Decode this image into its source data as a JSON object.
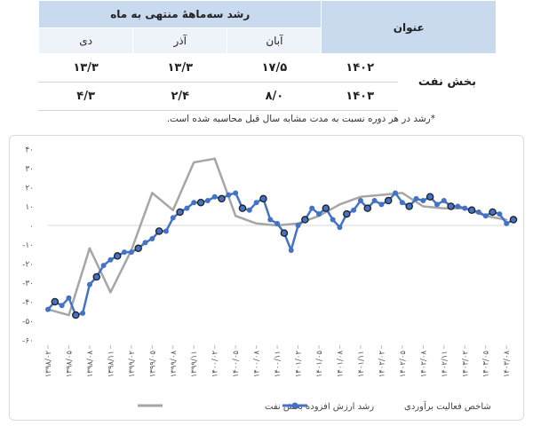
{
  "table": {
    "header_title": "عنوان",
    "header_group": "رشد سه‌ماهۀ منتهی به ماه",
    "months": [
      "آبان",
      "آذر",
      "دی"
    ],
    "sector": "بخش نفت",
    "rows": [
      {
        "year": "۱۴۰۲",
        "values": [
          "۱۷/۵",
          "۱۳/۳",
          "۱۳/۳"
        ]
      },
      {
        "year": "۱۴۰۳",
        "values": [
          "۸/۰",
          "۲/۴",
          "۴/۳"
        ]
      }
    ]
  },
  "note": "*رشد در هر دوره نسبت به مدت مشابه سال قبل محاسبه شده است.",
  "chart_data": {
    "type": "line",
    "ylim": [
      -60,
      40
    ],
    "yticks": [
      40,
      30,
      20,
      10,
      0,
      -10,
      -20,
      -30,
      -40,
      -50,
      -60
    ],
    "ytick_labels": [
      "۴۰",
      "۳۰",
      "۲۰",
      "۱۰",
      "۰",
      "-۱۰",
      "-۲۰",
      "-۳۰",
      "-۴۰",
      "-۵۰",
      "-۶۰"
    ],
    "xtick_labels": [
      "۱۳۹۸/۰۲",
      "۱۳۹۸/۰۵",
      "۱۳۹۸/۰۸",
      "۱۳۹۸/۱۱",
      "۱۳۹۹/۰۲",
      "۱۳۹۹/۰۵",
      "۱۳۹۹/۰۸",
      "۱۳۹۹/۱۱",
      "۱۴۰۰/۰۲",
      "۱۴۰۰/۰۵",
      "۱۴۰۰/۰۸",
      "۱۴۰۰/۱۱",
      "۱۴۰۱/۰۲",
      "۱۴۰۱/۰۵",
      "۱۴۰۱/۰۸",
      "۱۴۰۱/۱۱",
      "۱۴۰۲/۰۲",
      "۱۴۰۲/۰۵",
      "۱۴۰۲/۰۸",
      "۱۴۰۲/۱۱",
      "۱۴۰۳/۰۲",
      "۱۴۰۳/۰۵",
      "۱۴۰۳/۰۸"
    ],
    "series": [
      {
        "name": "رشد ارزش افزوده بخش نفت",
        "color": "#a6a6a6",
        "x": [
          0,
          3,
          6,
          9,
          12,
          15,
          18,
          21,
          24,
          27,
          30,
          33,
          36,
          39,
          42,
          45,
          48,
          51,
          54,
          57,
          60,
          63,
          66
        ],
        "values": [
          -44,
          -47,
          -12,
          -35,
          -13,
          17,
          8,
          33,
          35,
          5,
          1,
          0,
          1,
          5,
          11,
          15,
          16,
          17,
          10,
          9,
          9,
          5,
          3
        ]
      },
      {
        "name": "شاخص فعالیت برآوردی",
        "color": "#4472c4",
        "x": [
          0,
          1,
          2,
          3,
          4,
          5,
          6,
          7,
          8,
          9,
          10,
          11,
          12,
          13,
          14,
          15,
          16,
          17,
          18,
          19,
          20,
          21,
          22,
          23,
          24,
          25,
          26,
          27,
          28,
          29,
          30,
          31,
          32,
          33,
          34,
          35,
          36,
          37,
          38,
          39,
          40,
          41,
          42,
          43,
          44,
          45,
          46,
          47,
          48,
          49,
          50,
          51,
          52,
          53,
          54,
          55,
          56,
          57,
          58,
          59,
          60,
          61,
          62,
          63,
          64,
          65,
          66,
          67
        ],
        "values": [
          -44,
          -40,
          -42,
          -38,
          -47,
          -46,
          -31,
          -27,
          -21,
          -18,
          -16,
          -14,
          -14,
          -12,
          -9,
          -7,
          -3,
          -3,
          4,
          7,
          9,
          12,
          12,
          13,
          15,
          14,
          16,
          17,
          9,
          8,
          12,
          14,
          3,
          1,
          -4,
          -13,
          0,
          3,
          9,
          6,
          9,
          3,
          -1,
          6,
          8,
          13,
          9,
          13,
          11,
          13,
          17,
          12,
          10,
          14,
          13,
          15,
          11,
          13,
          10,
          10,
          9,
          8,
          7,
          5,
          7,
          6,
          1,
          3
        ]
      }
    ],
    "grid": false,
    "legend_position": "bottom"
  }
}
